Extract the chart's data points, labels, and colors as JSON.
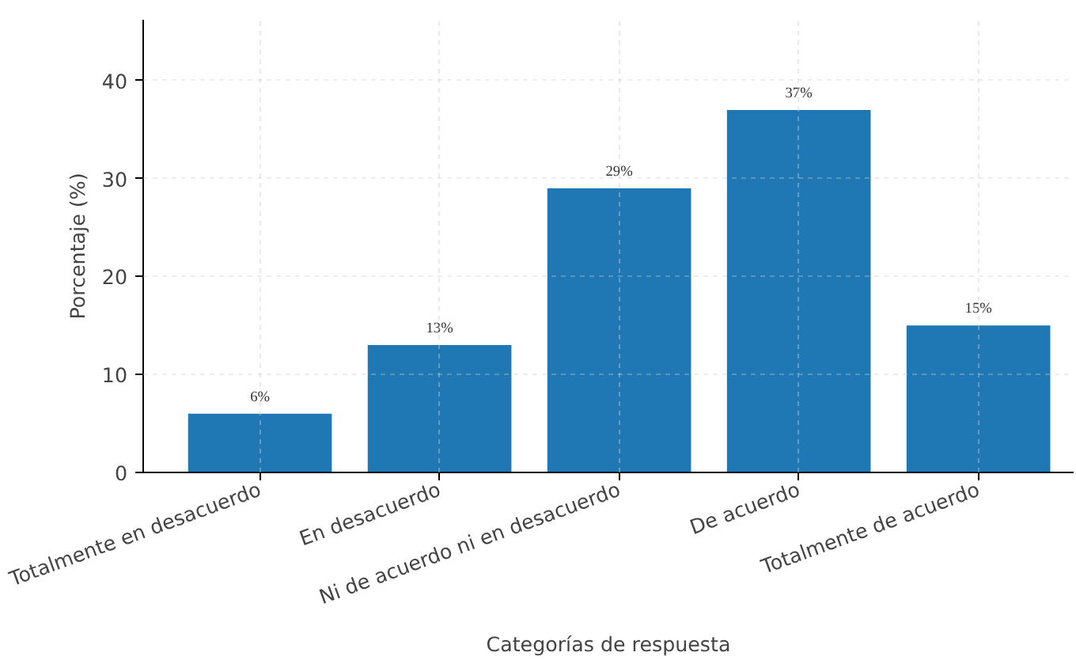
{
  "chart_data": {
    "type": "bar",
    "xlabel": "Categorías de respuesta",
    "ylabel": "Porcentaje (%)",
    "categories": [
      "Totalmente en desacuerdo",
      "En desacuerdo",
      "Ni de acuerdo ni en desacuerdo",
      "De acuerdo",
      "Totalmente de acuerdo"
    ],
    "values": [
      6,
      13,
      29,
      37,
      15
    ],
    "value_labels": [
      "6%",
      "13%",
      "29%",
      "37%",
      "15%"
    ],
    "color": "#1f77b4",
    "ylim": [
      0,
      46.2
    ],
    "yticks": [
      0,
      10,
      20,
      30,
      40
    ],
    "grid": true
  }
}
